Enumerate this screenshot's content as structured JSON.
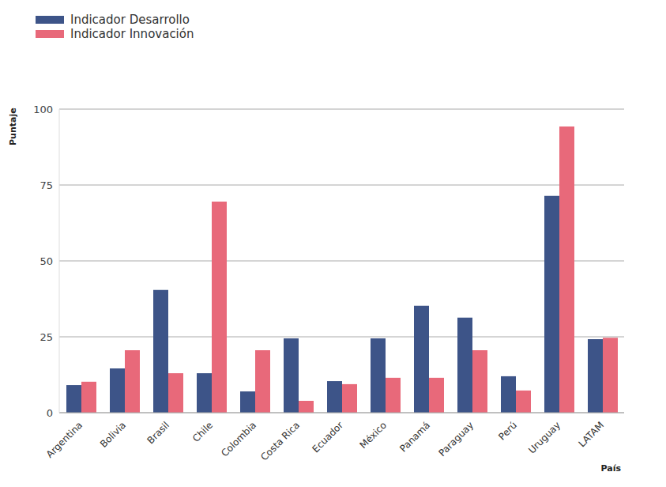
{
  "chart_data": {
    "type": "bar",
    "x_label": "País",
    "y_label": "Puntaje",
    "categories": [
      "Argentina",
      "Bolivia",
      "Brasil",
      "Chile",
      "Colombia",
      "Costa Rica",
      "Ecuador",
      "México",
      "Panamá",
      "Paraguay",
      "Perú",
      "Uruguay",
      "LATAM"
    ],
    "series": [
      {
        "name": "Indicador Desarrollo",
        "color": "#3d5488",
        "values": [
          9.1,
          14.6,
          40.4,
          13,
          7,
          24.5,
          10.4,
          24.5,
          35.2,
          31.3,
          12,
          71.4,
          24.2
        ]
      },
      {
        "name": "Indicador Innovación",
        "color": "#e8697a",
        "values": [
          10.2,
          20.6,
          13,
          69.5,
          20.6,
          3.9,
          9.4,
          11.5,
          11.5,
          20.6,
          7.3,
          94.3,
          24.7
        ]
      }
    ],
    "ylim": [
      0,
      100
    ],
    "yticks": [
      0,
      25,
      50,
      75,
      100
    ],
    "grid": true,
    "legend": "upper left"
  }
}
